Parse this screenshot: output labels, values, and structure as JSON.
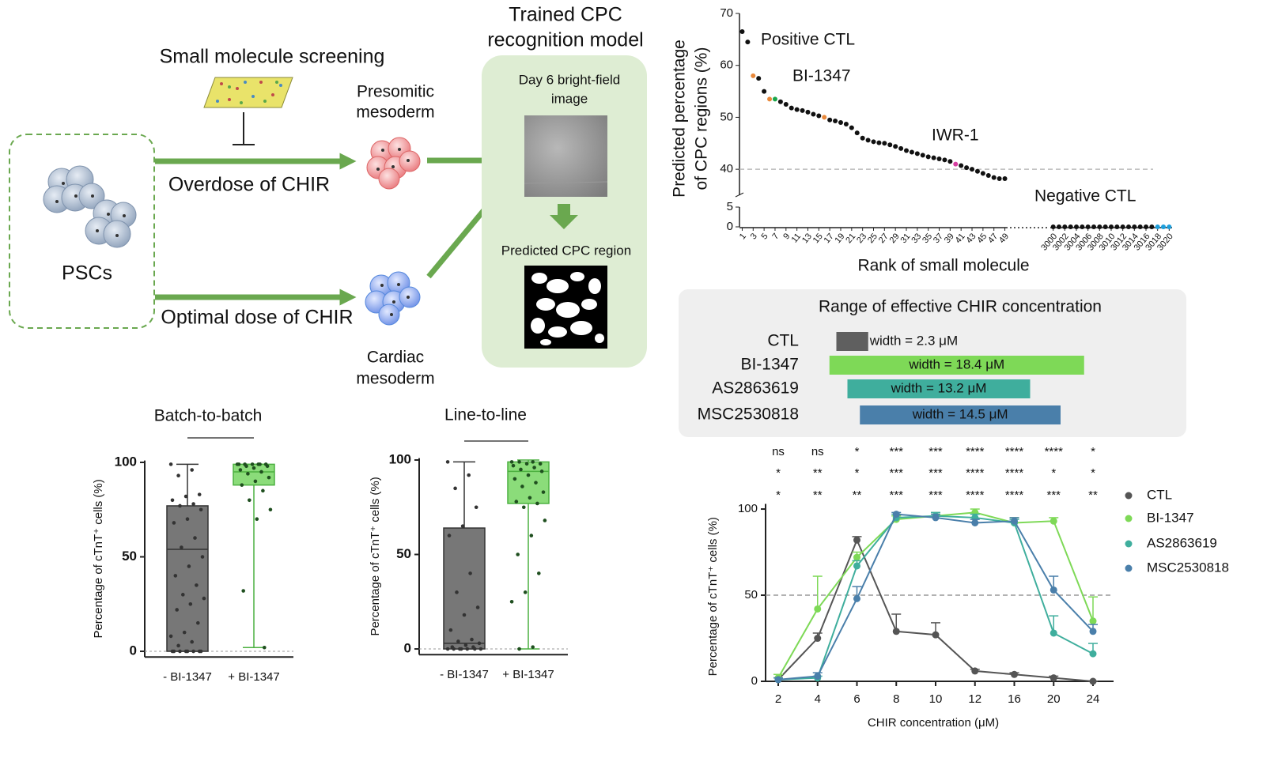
{
  "diagram": {
    "screening": "Small molecule screening",
    "overdose": "Overdose of CHIR",
    "optimal": "Optimal dose of CHIR",
    "pscs": "PSCs",
    "presomitic": [
      "Presomitic",
      "mesoderm"
    ],
    "cardiac": [
      "Cardiac",
      "mesoderm"
    ],
    "model_title": [
      "Trained CPC",
      "recognition model"
    ],
    "input": [
      "Day 6 bright-field",
      "image"
    ],
    "output": "Predicted CPC region"
  },
  "chart_data": [
    {
      "type": "scatter",
      "xlabel": "Rank of small molecule",
      "ylabel": [
        "Predicted percentage",
        "of CPC regions (%)"
      ],
      "xlim": [
        [
          0.5,
          49.5
        ],
        [
          2999.5,
          3020.5
        ]
      ],
      "ylim": [
        [
          0,
          5
        ],
        [
          35,
          70
        ]
      ],
      "xticks": [
        1,
        3,
        5,
        7,
        9,
        11,
        13,
        15,
        17,
        19,
        21,
        23,
        25,
        27,
        29,
        31,
        33,
        35,
        37,
        39,
        41,
        43,
        45,
        47,
        49,
        3000,
        3002,
        3004,
        3006,
        3008,
        3010,
        3012,
        3014,
        3016,
        3018,
        3020
      ],
      "yticks": [
        0,
        5,
        40,
        50,
        60,
        70
      ],
      "hline": 40,
      "grid": false,
      "series": [
        {
          "color": "#111111",
          "x": [
            1,
            2,
            4,
            5,
            8,
            9,
            10,
            11,
            12,
            13,
            14,
            15,
            17,
            18,
            19,
            20,
            21,
            22,
            23,
            24,
            25,
            26,
            27,
            28,
            29,
            30,
            31,
            32,
            33,
            34,
            35,
            36,
            37,
            38,
            39,
            41,
            42,
            43,
            44,
            45,
            46,
            47,
            48,
            49,
            3000,
            3001,
            3002,
            3003,
            3004,
            3005,
            3006,
            3007,
            3008,
            3009,
            3010,
            3011,
            3012,
            3013,
            3014,
            3015,
            3016,
            3017
          ],
          "values": [
            66.5,
            64.5,
            57.5,
            55,
            53,
            52.5,
            51.8,
            51.5,
            51.3,
            51,
            50.6,
            50.3,
            49.5,
            49.3,
            49,
            48.7,
            48,
            47,
            46,
            45.6,
            45.3,
            45.1,
            45,
            44.7,
            44.4,
            44,
            43.6,
            43.3,
            43,
            42.7,
            42.4,
            42.2,
            42,
            41.8,
            41.5,
            40.7,
            40.3,
            40,
            39.6,
            39.2,
            38.8,
            38.4,
            38.2,
            38.2,
            0,
            0,
            0,
            0,
            0,
            0,
            0,
            0,
            0,
            0,
            0,
            0,
            0,
            0,
            0,
            0,
            0,
            0
          ]
        },
        {
          "name": "Positive CTL",
          "color": "#e8883a",
          "x": [
            3,
            6,
            16
          ],
          "values": [
            58,
            53.5,
            50
          ]
        },
        {
          "name": "BI-1347",
          "color": "#1aa64a",
          "x": [
            7
          ],
          "values": [
            53.5
          ]
        },
        {
          "name": "IWR-1",
          "color": "#d63ea0",
          "x": [
            40
          ],
          "values": [
            41
          ]
        },
        {
          "name": "Negative CTL",
          "color": "#1e9fdc",
          "x": [
            3018,
            3019,
            3020
          ],
          "values": [
            0,
            0,
            0
          ]
        }
      ]
    },
    {
      "type": "range_bar",
      "title": "Range of effective CHIR concentration",
      "categories": [
        "CTL",
        "BI-1347",
        "AS2863619",
        "MSC2530818"
      ],
      "starts": [
        4.2,
        3.7,
        5,
        5.9
      ],
      "values": [
        2.3,
        18.4,
        13.2,
        14.5
      ],
      "value_labels": [
        "width = 2.3 μM",
        "width = 18.4 μM",
        "width = 13.2 μM",
        "width = 14.5 μM"
      ],
      "colors": [
        "#5f5f5f",
        "#7ed957",
        "#3fae9d",
        "#4a7faa"
      ],
      "xlim": [
        0,
        28
      ]
    },
    {
      "type": "box",
      "title": "Batch-to-batch",
      "ylabel": "Percentage of cTnT⁺ cells (%)",
      "categories": [
        "- BI-1347",
        "+ BI-1347"
      ],
      "ylim": [
        -3,
        101
      ],
      "yticks": [
        0,
        50,
        100
      ],
      "hline": 0,
      "boxes": [
        {
          "color": "#777777",
          "edge": "#333333",
          "min": 0,
          "q1": 0,
          "median": 54,
          "q3": 77,
          "max": 99,
          "points": [
            99,
            96,
            93,
            83,
            82,
            80,
            78,
            77,
            75,
            70,
            68,
            60,
            55,
            50,
            45,
            40,
            35,
            30,
            28,
            25,
            22,
            15,
            10,
            8,
            5,
            3,
            0,
            0,
            0,
            0,
            0,
            0,
            0,
            0
          ]
        },
        {
          "color": "#8bdc7a",
          "edge": "#4cb040",
          "min": 2,
          "q1": 88,
          "median": 95,
          "q3": 99,
          "max": 99,
          "points": [
            99,
            99,
            99,
            99,
            99,
            99,
            99,
            98,
            98,
            97,
            96,
            95,
            94,
            92,
            90,
            88,
            85,
            80,
            75,
            70,
            32,
            2
          ]
        }
      ]
    },
    {
      "type": "box",
      "title": "Line-to-line",
      "ylabel": "Percentage of cTnT⁺ cells (%)",
      "categories": [
        "- BI-1347",
        "+ BI-1347"
      ],
      "ylim": [
        -3,
        101
      ],
      "yticks": [
        0,
        50,
        100
      ],
      "hline": 0,
      "boxes": [
        {
          "color": "#777777",
          "edge": "#333333",
          "min": 0,
          "q1": 0,
          "median": 3,
          "q3": 64,
          "max": 99,
          "points": [
            99,
            92,
            85,
            75,
            65,
            60,
            40,
            30,
            22,
            18,
            10,
            5,
            4,
            3,
            2,
            1,
            1,
            0,
            0,
            0,
            0,
            0,
            0,
            0
          ]
        },
        {
          "color": "#8bdc7a",
          "edge": "#4cb040",
          "min": 0,
          "q1": 77,
          "median": 94,
          "q3": 99,
          "max": 100,
          "points": [
            99,
            99,
            99,
            98,
            98,
            97,
            96,
            95,
            94,
            92,
            90,
            88,
            86,
            83,
            80,
            78,
            77,
            75,
            68,
            60,
            50,
            40,
            30,
            25,
            1,
            0
          ]
        }
      ]
    },
    {
      "type": "line",
      "xlabel": "CHIR concentration (μM)",
      "ylabel": "Percentage of cTnT⁺ cells (%)",
      "categories": [
        2,
        4,
        6,
        8,
        10,
        12,
        16,
        20,
        24
      ],
      "ylim": [
        0,
        103
      ],
      "yticks": [
        0,
        50,
        100
      ],
      "hline": 50,
      "legend": "right",
      "series": [
        {
          "name": "CTL",
          "color": "#555555",
          "values": [
            1,
            25,
            82,
            29,
            27,
            6,
            4,
            2,
            0
          ],
          "errors": [
            1,
            3,
            2,
            10,
            7,
            1,
            1,
            1,
            0
          ]
        },
        {
          "name": "BI-1347",
          "color": "#7ed957",
          "values": [
            2,
            42,
            72,
            94,
            96,
            98,
            92,
            93,
            35
          ],
          "errors": [
            2,
            19,
            3,
            2,
            2,
            2,
            3,
            2,
            14
          ],
          "significance": [
            "ns",
            "ns",
            "*",
            "***",
            "***",
            "****",
            "****",
            "****",
            "*"
          ]
        },
        {
          "name": "AS2863619",
          "color": "#3fae9d",
          "values": [
            1,
            2,
            67,
            95,
            96,
            95,
            92,
            28,
            16
          ],
          "errors": [
            1,
            1,
            3,
            2,
            2,
            2,
            2,
            10,
            6
          ],
          "significance": [
            "*",
            "**",
            "*",
            "***",
            "***",
            "****",
            "****",
            "*",
            "*"
          ]
        },
        {
          "name": "MSC2530818",
          "color": "#4a7faa",
          "values": [
            1,
            3,
            48,
            97,
            95,
            92,
            93,
            53,
            29
          ],
          "errors": [
            1,
            2,
            7,
            1,
            2,
            2,
            2,
            8,
            4
          ],
          "significance": [
            "*",
            "**",
            "**",
            "***",
            "***",
            "****",
            "****",
            "***",
            "**"
          ]
        }
      ]
    }
  ]
}
